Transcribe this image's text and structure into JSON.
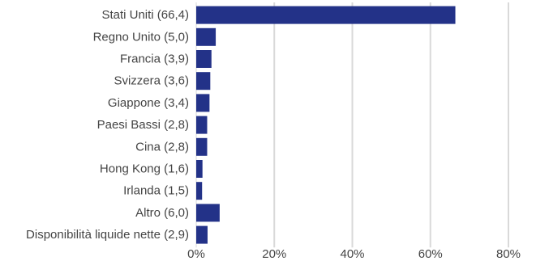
{
  "chart_data": {
    "type": "bar",
    "orientation": "horizontal",
    "title": "",
    "xlabel": "",
    "ylabel": "",
    "categories": [
      "Stati Uniti (66,4)",
      "Regno Unito (5,0)",
      "Francia (3,9)",
      "Svizzera (3,6)",
      "Giappone (3,4)",
      "Paesi Bassi (2,8)",
      "Cina (2,8)",
      "Hong Kong (1,6)",
      "Irlanda (1,5)",
      "Altro (6,0)",
      "Disponibilità liquide nette (2,9)"
    ],
    "values": [
      66.4,
      5.0,
      3.9,
      3.6,
      3.4,
      2.8,
      2.8,
      1.6,
      1.5,
      6.0,
      2.9
    ],
    "xlim": [
      0,
      80
    ],
    "x_ticks": [
      0,
      20,
      40,
      60,
      80
    ],
    "x_tick_labels": [
      "0%",
      "20%",
      "40%",
      "60%",
      "80%"
    ],
    "grid": "vertical",
    "legend": "none",
    "bar_color": "#233288",
    "grid_color": "#d9d9d9",
    "text_color": "#444444"
  }
}
